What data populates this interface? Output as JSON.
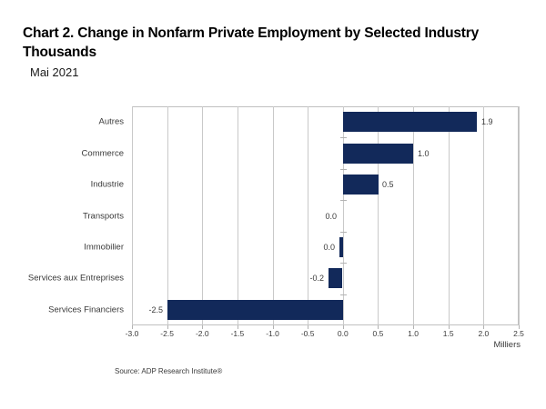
{
  "header": {
    "title_line1": "Chart 2. Change in Nonfarm Private Employment by Selected Industry",
    "title_line2": "Thousands",
    "subtitle": "Mai 2021"
  },
  "chart_data": {
    "type": "bar",
    "orientation": "horizontal",
    "title": "Chart 2. Change in Nonfarm Private Employment by Selected Industry Thousands",
    "subtitle": "Mai 2021",
    "categories": [
      "Autres",
      "Commerce",
      "Industrie",
      "Transports",
      "Immobilier",
      "Services aux Entreprises",
      "Services Financiers"
    ],
    "values": [
      1.9,
      1.0,
      0.5,
      0.0,
      -0.05,
      -0.2,
      -2.5
    ],
    "value_labels": [
      "1.9",
      "1.0",
      "0.5",
      "0.0",
      "0.0",
      "-0.2",
      "-2.5"
    ],
    "xlabel": "Milliers",
    "xlim": [
      -3.0,
      2.5
    ],
    "xticks": [
      -3.0,
      -2.5,
      -2.0,
      -1.5,
      -1.0,
      -0.5,
      0.0,
      0.5,
      1.0,
      1.5,
      2.0,
      2.5
    ],
    "xtick_labels": [
      "-3.0",
      "-2.5",
      "-2.0",
      "-1.5",
      "-1.0",
      "-0.5",
      "0.0",
      "0.5",
      "1.0",
      "1.5",
      "2.0",
      "2.5"
    ],
    "grid": true,
    "legend": "none",
    "bar_color": "#12295a",
    "gridline_color": "#c9c9c9",
    "axis_text_color": "#3a3a3a"
  },
  "footer": {
    "source": "Source: ADP Research Institute®"
  }
}
